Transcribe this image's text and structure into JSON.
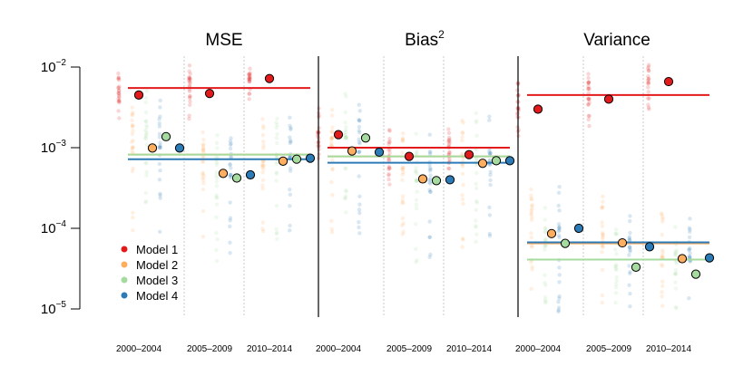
{
  "chart_data": {
    "type": "scatter",
    "y_scale": "log10",
    "ylim": [
      1e-05,
      0.01
    ],
    "y_ticks": [
      {
        "base": "10",
        "exp": "−2",
        "value": 0.01
      },
      {
        "base": "10",
        "exp": "−3",
        "value": 0.001
      },
      {
        "base": "10",
        "exp": "−4",
        "value": 0.0001
      },
      {
        "base": "10",
        "exp": "−5",
        "value": 1e-05
      }
    ],
    "categories": [
      "2000–2004",
      "2005–2009",
      "2010–2014"
    ],
    "legend": {
      "position": "bottom-left",
      "entries": [
        {
          "name": "Model 1",
          "color": "#E31A1C"
        },
        {
          "name": "Model 2",
          "color": "#FDAE61"
        },
        {
          "name": "Model 3",
          "color": "#A6DBA0"
        },
        {
          "name": "Model 4",
          "color": "#2C7BB6"
        }
      ]
    },
    "panels": [
      {
        "title": "MSE",
        "title_sup": "",
        "hlines": {
          "Model 1": 0.0055,
          "Model 2": 0.00082,
          "Model 3": 0.00082,
          "Model 4": 0.00072
        },
        "points": {
          "Model 1": [
            0.0045,
            0.0047,
            0.0072
          ],
          "Model 2": [
            0.00099,
            0.00048,
            0.00068
          ],
          "Model 3": [
            0.00137,
            0.00042,
            0.00072
          ],
          "Model 4": [
            0.00099,
            0.00046,
            0.00074
          ]
        }
      },
      {
        "title": "Bias",
        "title_sup": "2",
        "hlines": {
          "Model 1": 0.001,
          "Model 2": 0.00078,
          "Model 3": 0.00078,
          "Model 4": 0.00065
        },
        "points": {
          "Model 1": [
            0.00145,
            0.00078,
            0.00082
          ],
          "Model 2": [
            0.00091,
            0.00041,
            0.00064
          ],
          "Model 3": [
            0.00132,
            0.00039,
            0.00069
          ],
          "Model 4": [
            0.00088,
            0.0004,
            0.00069
          ]
        }
      },
      {
        "title": "Variance",
        "title_sup": "",
        "hlines": {
          "Model 1": 0.0045,
          "Model 2": 6.5e-05,
          "Model 3": 4.1e-05,
          "Model 4": 6.7e-05
        },
        "points": {
          "Model 1": [
            0.003,
            0.004,
            0.0066
          ],
          "Model 2": [
            8.6e-05,
            6.6e-05,
            4.2e-05
          ],
          "Model 3": [
            6.5e-05,
            3.3e-05,
            2.7e-05
          ],
          "Model 4": [
            0.0001,
            5.9e-05,
            4.3e-05
          ]
        }
      }
    ]
  }
}
